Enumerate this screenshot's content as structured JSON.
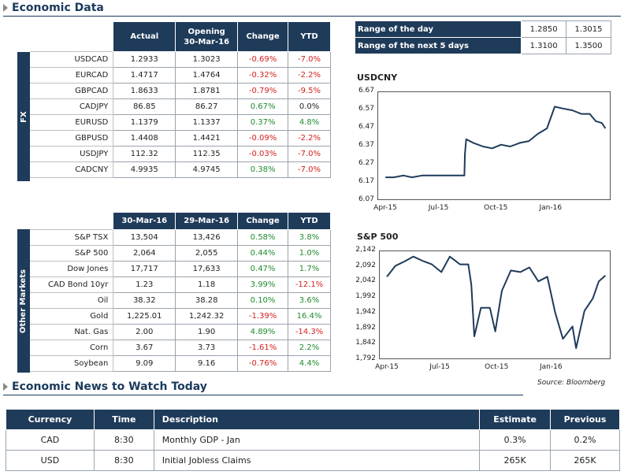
{
  "economic_data": {
    "title": "Economic Data",
    "fx": {
      "side_label": "FX",
      "headers": [
        "Actual",
        "Opening\n30-Mar-16",
        "Change",
        "YTD"
      ],
      "rows": [
        {
          "name": "USDCAD",
          "actual": "1.2933",
          "opening": "1.3023",
          "change": "-0.69%",
          "ytd": "-7.0%",
          "change_sign": "neg",
          "ytd_sign": "neg"
        },
        {
          "name": "EURCAD",
          "actual": "1.4717",
          "opening": "1.4764",
          "change": "-0.32%",
          "ytd": "-2.2%",
          "change_sign": "neg",
          "ytd_sign": "neg"
        },
        {
          "name": "GBPCAD",
          "actual": "1.8633",
          "opening": "1.8781",
          "change": "-0.79%",
          "ytd": "-9.5%",
          "change_sign": "neg",
          "ytd_sign": "neg"
        },
        {
          "name": "CADJPY",
          "actual": "86.85",
          "opening": "86.27",
          "change": "0.67%",
          "ytd": "0.0%",
          "change_sign": "pos",
          "ytd_sign": "neu"
        },
        {
          "name": "EURUSD",
          "actual": "1.1379",
          "opening": "1.1337",
          "change": "0.37%",
          "ytd": "4.8%",
          "change_sign": "pos",
          "ytd_sign": "pos"
        },
        {
          "name": "GBPUSD",
          "actual": "1.4408",
          "opening": "1.4421",
          "change": "-0.09%",
          "ytd": "-2.2%",
          "change_sign": "neg",
          "ytd_sign": "neg"
        },
        {
          "name": "USDJPY",
          "actual": "112.32",
          "opening": "112.35",
          "change": "-0.03%",
          "ytd": "-7.0%",
          "change_sign": "neg",
          "ytd_sign": "neg"
        },
        {
          "name": "CADCNY",
          "actual": "4.9935",
          "opening": "4.9745",
          "change": "0.38%",
          "ytd": "-7.0%",
          "change_sign": "pos",
          "ytd_sign": "neg"
        }
      ]
    },
    "other": {
      "side_label": "Other Markets",
      "headers": [
        "30-Mar-16",
        "29-Mar-16",
        "Change",
        "YTD"
      ],
      "rows": [
        {
          "name": "S&P TSX",
          "actual": "13,504",
          "opening": "13,426",
          "change": "0.58%",
          "ytd": "3.8%",
          "change_sign": "pos",
          "ytd_sign": "pos"
        },
        {
          "name": "S&P 500",
          "actual": "2,064",
          "opening": "2,055",
          "change": "0.44%",
          "ytd": "1.0%",
          "change_sign": "pos",
          "ytd_sign": "pos"
        },
        {
          "name": "Dow Jones",
          "actual": "17,717",
          "opening": "17,633",
          "change": "0.47%",
          "ytd": "1.7%",
          "change_sign": "pos",
          "ytd_sign": "pos"
        },
        {
          "name": "CAD Bond 10yr",
          "actual": "1.23",
          "opening": "1.18",
          "change": "3.99%",
          "ytd": "-12.1%",
          "change_sign": "pos",
          "ytd_sign": "neg"
        },
        {
          "name": "Oil",
          "actual": "38.32",
          "opening": "38.28",
          "change": "0.10%",
          "ytd": "3.6%",
          "change_sign": "pos",
          "ytd_sign": "pos"
        },
        {
          "name": "Gold",
          "actual": "1,225.01",
          "opening": "1,242.32",
          "change": "-1.39%",
          "ytd": "16.4%",
          "change_sign": "neg",
          "ytd_sign": "pos"
        },
        {
          "name": "Nat. Gas",
          "actual": "2.00",
          "opening": "1.90",
          "change": "4.89%",
          "ytd": "-14.3%",
          "change_sign": "pos",
          "ytd_sign": "neg"
        },
        {
          "name": "Corn",
          "actual": "3.67",
          "opening": "3.73",
          "change": "-1.61%",
          "ytd": "2.2%",
          "change_sign": "neg",
          "ytd_sign": "pos"
        },
        {
          "name": "Soybean",
          "actual": "9.09",
          "opening": "9.16",
          "change": "-0.76%",
          "ytd": "4.4%",
          "change_sign": "neg",
          "ytd_sign": "pos"
        }
      ]
    },
    "range": [
      {
        "label": "Range of the day",
        "low": "1.2850",
        "high": "1.3015"
      },
      {
        "label": "Range of the next 5 days",
        "low": "1.3100",
        "high": "1.3500"
      }
    ]
  },
  "chart_data": [
    {
      "type": "line",
      "title": "USDCNY",
      "x_ticks": [
        "Apr-15",
        "Jul-15",
        "Oct-15",
        "Jan-16"
      ],
      "y_ticks": [
        "6.67",
        "6.57",
        "6.47",
        "6.37",
        "6.27",
        "6.17",
        "6.07"
      ],
      "ylim": [
        6.07,
        6.67
      ],
      "x": [
        "2015-04-01",
        "2015-04-15",
        "2015-05-01",
        "2015-05-15",
        "2015-06-01",
        "2015-06-15",
        "2015-07-01",
        "2015-07-15",
        "2015-08-01",
        "2015-08-10",
        "2015-08-11",
        "2015-08-13",
        "2015-08-25",
        "2015-09-10",
        "2015-09-25",
        "2015-10-10",
        "2015-10-25",
        "2015-11-10",
        "2015-11-25",
        "2015-12-10",
        "2015-12-25",
        "2016-01-07",
        "2016-01-20",
        "2016-02-05",
        "2016-02-20",
        "2016-03-05",
        "2016-03-15",
        "2016-03-25",
        "2016-03-31"
      ],
      "values": [
        6.2,
        6.2,
        6.21,
        6.2,
        6.21,
        6.21,
        6.21,
        6.21,
        6.21,
        6.21,
        6.33,
        6.41,
        6.39,
        6.37,
        6.36,
        6.38,
        6.37,
        6.39,
        6.4,
        6.44,
        6.47,
        6.59,
        6.58,
        6.57,
        6.55,
        6.55,
        6.51,
        6.5,
        6.47
      ],
      "line_color": "#1f3b5a"
    },
    {
      "type": "line",
      "title": "S&P 500",
      "x_ticks": [
        "Apr-15",
        "Jul-15",
        "Oct-15",
        "Jan-16"
      ],
      "y_ticks": [
        "2,142",
        "2,092",
        "2,042",
        "1,992",
        "1,942",
        "1,892",
        "1,842",
        "1,792"
      ],
      "ylim": [
        1792,
        2142
      ],
      "x": [
        "2015-04-01",
        "2015-04-15",
        "2015-05-01",
        "2015-05-15",
        "2015-06-01",
        "2015-06-15",
        "2015-07-01",
        "2015-07-15",
        "2015-08-01",
        "2015-08-15",
        "2015-08-20",
        "2015-08-25",
        "2015-09-05",
        "2015-09-20",
        "2015-09-29",
        "2015-10-10",
        "2015-10-25",
        "2015-11-10",
        "2015-11-25",
        "2015-12-10",
        "2015-12-25",
        "2016-01-07",
        "2016-01-20",
        "2016-02-05",
        "2016-02-11",
        "2016-02-25",
        "2016-03-10",
        "2016-03-20",
        "2016-03-31"
      ],
      "values": [
        2060,
        2095,
        2110,
        2125,
        2110,
        2100,
        2075,
        2125,
        2100,
        2100,
        2035,
        1868,
        1960,
        1960,
        1884,
        2015,
        2080,
        2075,
        2090,
        2045,
        2060,
        1945,
        1860,
        1900,
        1830,
        1950,
        1990,
        2045,
        2064
      ],
      "line_color": "#1f3b5a"
    }
  ],
  "source": "Source: Bloomberg",
  "news": {
    "title": "Economic News to Watch Today",
    "headers": [
      "Currency",
      "Time",
      "Description",
      "Estimate",
      "Previous"
    ],
    "rows": [
      {
        "currency": "CAD",
        "time": "8:30",
        "description": "Monthly GDP - Jan",
        "estimate": "0.3%",
        "previous": "0.2%"
      },
      {
        "currency": "USD",
        "time": "8:30",
        "description": "Initial Jobless Claims",
        "estimate": "265K",
        "previous": "265K"
      }
    ]
  }
}
